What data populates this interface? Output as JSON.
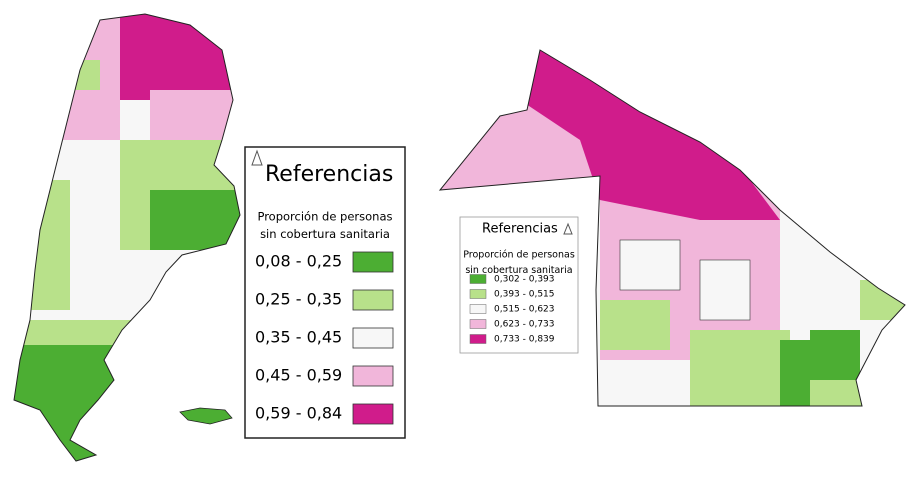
{
  "maps": [
    {
      "legend": {
        "title": "Referencias",
        "subtitle": [
          "Proporción de personas",
          "sin cobertura sanitaria"
        ],
        "items": [
          {
            "label": "0,08 - 0,25",
            "color": "#4cae33"
          },
          {
            "label": "0,25 - 0,35",
            "color": "#b8e18a"
          },
          {
            "label": "0,35 - 0,45",
            "color": "#f7f7f7"
          },
          {
            "label": "0,45 - 0,59",
            "color": "#f1b6da"
          },
          {
            "label": "0,59 - 0,84",
            "color": "#d01c8b"
          }
        ]
      }
    },
    {
      "legend": {
        "title": "Referencias",
        "subtitle": [
          "Proporción de personas",
          "sin cobertura sanitaria"
        ],
        "items": [
          {
            "label": "0,302 - 0,393",
            "color": "#4cae33"
          },
          {
            "label": "0,393 - 0,515",
            "color": "#b8e18a"
          },
          {
            "label": "0,515 - 0,623",
            "color": "#f7f7f7"
          },
          {
            "label": "0,623 - 0,733",
            "color": "#f1b6da"
          },
          {
            "label": "0,733 - 0,839",
            "color": "#d01c8b"
          }
        ]
      }
    }
  ]
}
